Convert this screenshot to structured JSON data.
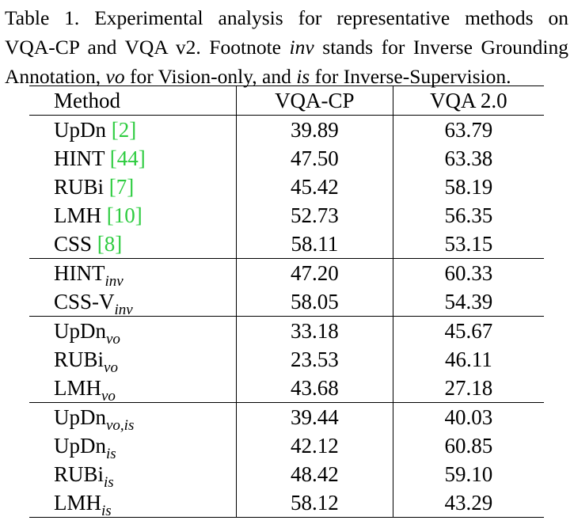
{
  "caption": {
    "line1": "Table 1. Experimental analysis for representative methods on",
    "line2_pre": "VQA-CP and VQA v2. Footnote ",
    "line2_em": "inv",
    "line2_post": " stands for Inverse Grounding",
    "line3_a": "Annotation, ",
    "line3_em1": "vo",
    "line3_b": " for Vision-only, and ",
    "line3_em2": "is",
    "line3_c": " for Inverse-Supervision."
  },
  "table": {
    "headers": [
      "Method",
      "VQA-CP",
      "VQA 2.0"
    ],
    "groups": [
      [
        {
          "name": "UpDn",
          "sub": "",
          "cite": "2",
          "vqacp": "39.89",
          "vqa2": "63.79"
        },
        {
          "name": "HINT",
          "sub": "",
          "cite": "44",
          "vqacp": "47.50",
          "vqa2": "63.38"
        },
        {
          "name": "RUBi",
          "sub": "",
          "cite": "7",
          "vqacp": "45.42",
          "vqa2": "58.19"
        },
        {
          "name": "LMH",
          "sub": "",
          "cite": "10",
          "vqacp": "52.73",
          "vqa2": "56.35"
        },
        {
          "name": "CSS",
          "sub": "",
          "cite": "8",
          "vqacp": "58.11",
          "vqa2": "53.15"
        }
      ],
      [
        {
          "name": "HINT",
          "sub": "inv",
          "cite": "",
          "vqacp": "47.20",
          "vqa2": "60.33"
        },
        {
          "name": "CSS-V",
          "sub": "inv",
          "cite": "",
          "vqacp": "58.05",
          "vqa2": "54.39"
        }
      ],
      [
        {
          "name": "UpDn",
          "sub": "vo",
          "cite": "",
          "vqacp": "33.18",
          "vqa2": "45.67"
        },
        {
          "name": "RUBi",
          "sub": "vo",
          "cite": "",
          "vqacp": "23.53",
          "vqa2": "46.11"
        },
        {
          "name": "LMH",
          "sub": "vo",
          "cite": "",
          "vqacp": "43.68",
          "vqa2": "27.18"
        }
      ],
      [
        {
          "name": "UpDn",
          "sub": "vo,is",
          "cite": "",
          "vqacp": "39.44",
          "vqa2": "40.03"
        },
        {
          "name": "UpDn",
          "sub": "is",
          "cite": "",
          "vqacp": "42.12",
          "vqa2": "60.85"
        },
        {
          "name": "RUBi",
          "sub": "is",
          "cite": "",
          "vqacp": "48.42",
          "vqa2": "59.10"
        },
        {
          "name": "LMH",
          "sub": "is",
          "cite": "",
          "vqacp": "58.12",
          "vqa2": "43.29"
        }
      ]
    ]
  },
  "colors": {
    "citation": "#2ecc40",
    "text": "#000000",
    "background": "#ffffff"
  }
}
